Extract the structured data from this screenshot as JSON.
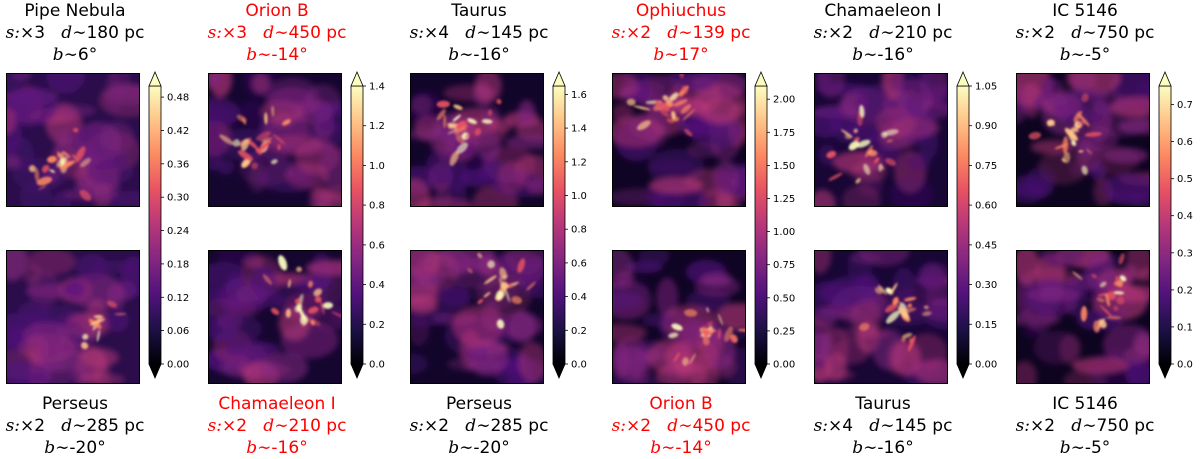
{
  "columns": [
    {
      "top": {
        "name": "Pipe Nebula",
        "s": "×3",
        "d": "180 pc",
        "b": "6°",
        "red": false
      },
      "bottom": {
        "name": "Perseus",
        "s": "×2",
        "d": "285 pc",
        "b": "-20°",
        "red": false
      },
      "colorbar": {
        "ticks": [
          "0.48",
          "0.42",
          "0.36",
          "0.30",
          "0.24",
          "0.18",
          "0.12",
          "0.06",
          "0.00"
        ],
        "max": 0.5
      }
    },
    {
      "top": {
        "name": "Orion B",
        "s": "×3",
        "d": "450 pc",
        "b": "-14°",
        "red": true
      },
      "bottom": {
        "name": "Chamaeleon I",
        "s": "×2",
        "d": "210 pc",
        "b": "-16°",
        "red": true
      },
      "colorbar": {
        "ticks": [
          "1.4",
          "1.2",
          "1.0",
          "0.8",
          "0.6",
          "0.4",
          "0.2",
          "0.0"
        ],
        "max": 1.4
      }
    },
    {
      "top": {
        "name": "Taurus",
        "s": "×4",
        "d": "145 pc",
        "b": "-16°",
        "red": false
      },
      "bottom": {
        "name": "Perseus",
        "s": "×2",
        "d": "285 pc",
        "b": "-20°",
        "red": false
      },
      "colorbar": {
        "ticks": [
          "1.6",
          "1.4",
          "1.2",
          "1.0",
          "0.8",
          "0.6",
          "0.4",
          "0.2",
          "0.0"
        ],
        "max": 1.65
      }
    },
    {
      "top": {
        "name": "Ophiuchus",
        "s": "×2",
        "d": "139 pc",
        "b": "17°",
        "red": true
      },
      "bottom": {
        "name": "Orion B",
        "s": "×2",
        "d": "450 pc",
        "b": "-14°",
        "red": true
      },
      "colorbar": {
        "ticks": [
          "2.00",
          "1.75",
          "1.50",
          "1.25",
          "1.00",
          "0.75",
          "0.50",
          "0.25",
          "0.00"
        ],
        "max": 2.1
      }
    },
    {
      "top": {
        "name": "Chamaeleon I",
        "s": "×2",
        "d": "210 pc",
        "b": "-16°",
        "red": false
      },
      "bottom": {
        "name": "Taurus",
        "s": "×4",
        "d": "145 pc",
        "b": "-16°",
        "red": false
      },
      "colorbar": {
        "ticks": [
          "1.05",
          "0.90",
          "0.75",
          "0.60",
          "0.45",
          "0.30",
          "0.15",
          "0.00"
        ],
        "max": 1.05
      }
    },
    {
      "top": {
        "name": "IC 5146",
        "s": "×2",
        "d": "750 pc",
        "b": "-5°",
        "red": false
      },
      "bottom": {
        "name": "IC 5146",
        "s": "×2",
        "d": "750 pc",
        "b": "-5°",
        "red": false
      },
      "colorbar": {
        "ticks": [
          "0.7",
          "0.6",
          "0.5",
          "0.4",
          "0.3",
          "0.2",
          "0.1",
          "0.0"
        ],
        "max": 0.75
      }
    }
  ],
  "labels": {
    "s_prefix": "s:",
    "d_prefix": "d",
    "b_prefix": "b",
    "tilde": "∼"
  },
  "colors": {
    "red": "#ff0000",
    "black": "#000000"
  }
}
